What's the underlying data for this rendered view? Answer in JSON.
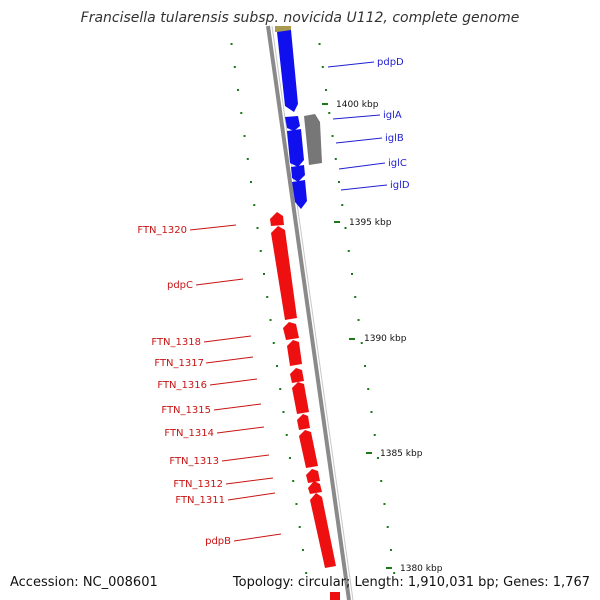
{
  "title": "Francisella tularensis subsp. novicida U112, complete genome",
  "footer": {
    "accession": "Accession: NC_008601",
    "topology": "Topology: circular; Length: 1,910,031 bp; Genes: 1,767"
  },
  "colors": {
    "backbone": "#8a8a8a",
    "forward_genes": "#1010ee",
    "reverse_genes": "#ee1010",
    "other_genes": "#808080",
    "ticks": "#1a7a1a",
    "blue_labels": "#1f1fd0",
    "red_labels": "#c81414"
  },
  "scale_labels": [
    "1400 kbp",
    "1395 kbp",
    "1390 kbp",
    "1385 kbp",
    "1380 kbp"
  ],
  "blue_gene_labels": [
    "pdpD",
    "iglA",
    "iglB",
    "iglC",
    "iglD"
  ],
  "red_gene_labels": [
    "FTN_1320",
    "pdpC",
    "FTN_1318",
    "FTN_1317",
    "FTN_1316",
    "FTN_1315",
    "FTN_1314",
    "FTN_1313",
    "FTN_1312",
    "FTN_1311",
    "pdpB"
  ]
}
